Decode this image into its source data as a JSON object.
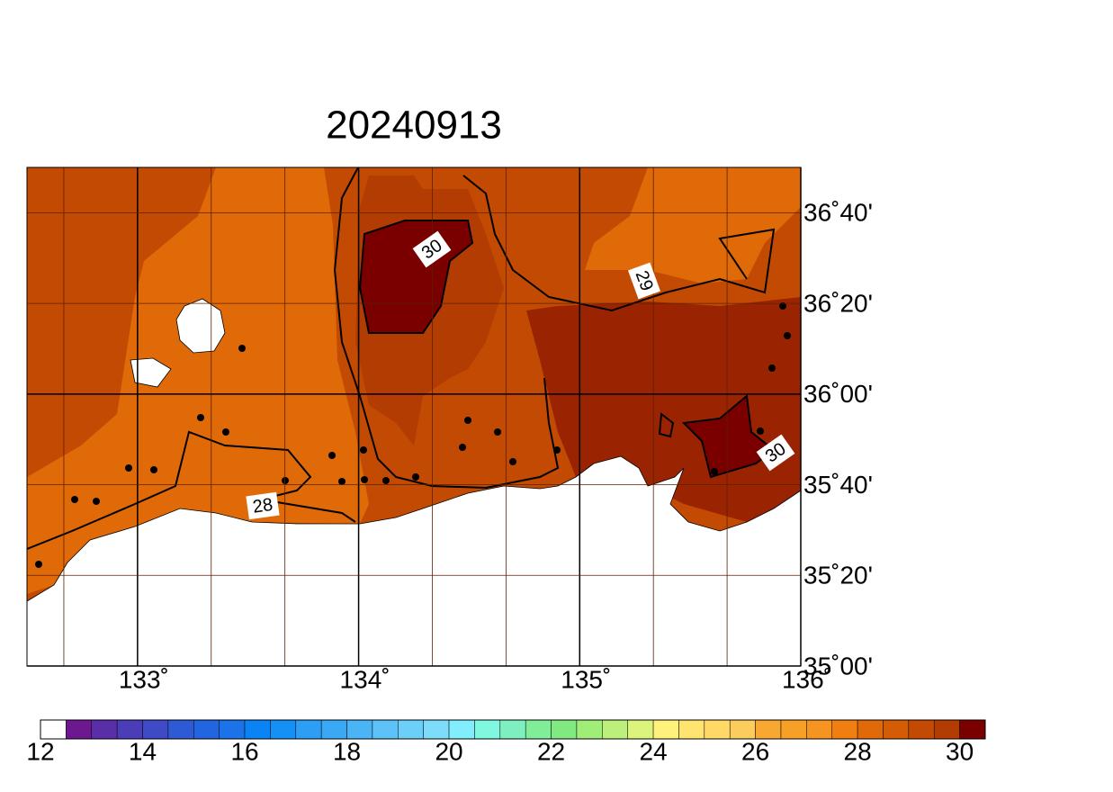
{
  "title": "20240913",
  "map": {
    "lon_range": [
      132.5,
      136
    ],
    "lat_range": [
      35,
      36.8333
    ],
    "lon_ticks": [
      {
        "value": 133,
        "label": "133˚"
      },
      {
        "value": 134,
        "label": "134˚"
      },
      {
        "value": 135,
        "label": "135˚"
      },
      {
        "value": 136,
        "label": "136˚"
      }
    ],
    "lat_ticks": [
      {
        "value": 35,
        "label": "35˚00'"
      },
      {
        "value": 35.3333,
        "label": "35˚20'"
      },
      {
        "value": 35.6667,
        "label": "35˚40'"
      },
      {
        "value": 36,
        "label": "36˚00'"
      },
      {
        "value": 36.3333,
        "label": "36˚20'"
      },
      {
        "value": 36.6667,
        "label": "36˚40'"
      }
    ],
    "contour_labels": [
      "30",
      "29",
      "30",
      "28"
    ]
  },
  "colorbar": {
    "range": [
      12,
      30.5
    ],
    "step": 0.5,
    "ticks": [
      12,
      14,
      16,
      18,
      20,
      22,
      24,
      26,
      28,
      30
    ],
    "colors": [
      "#ffffff",
      "#6e1890",
      "#5a2ea6",
      "#4b3cb8",
      "#3e4ac6",
      "#2f5ad6",
      "#2166e0",
      "#1a73e8",
      "#0a84f5",
      "#1590f5",
      "#2c9ef5",
      "#3aa8f5",
      "#4bb4f5",
      "#5cc2f7",
      "#6ccff8",
      "#7ddcfa",
      "#80eefc",
      "#80f8e0",
      "#7ef0c0",
      "#80ee98",
      "#80ea80",
      "#a0ee78",
      "#bdf07a",
      "#dcf47c",
      "#fff27a",
      "#ffe470",
      "#ffd866",
      "#fccc5c",
      "#f8a830",
      "#f6a028",
      "#f59420",
      "#f07e10",
      "#e06a08",
      "#d45c04",
      "#c24a02",
      "#b23c02",
      "#7a0000"
    ]
  }
}
